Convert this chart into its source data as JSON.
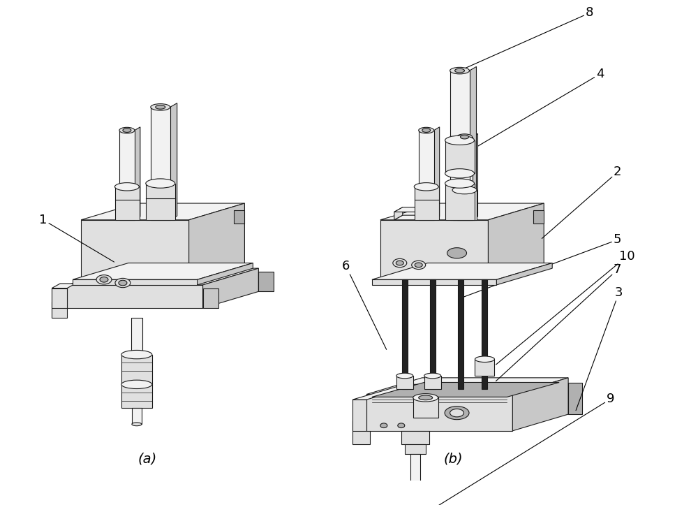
{
  "figure_width": 10.0,
  "figure_height": 7.23,
  "dpi": 100,
  "bg_color": "#ffffff",
  "label_a": "(a)",
  "label_b": "(b)",
  "face_light": "#f2f2f2",
  "face_mid": "#e0e0e0",
  "face_dark": "#c8c8c8",
  "face_darker": "#b0b0b0",
  "edge_color": "#1a1a1a",
  "bolt_color": "#222222",
  "lw": 0.8
}
